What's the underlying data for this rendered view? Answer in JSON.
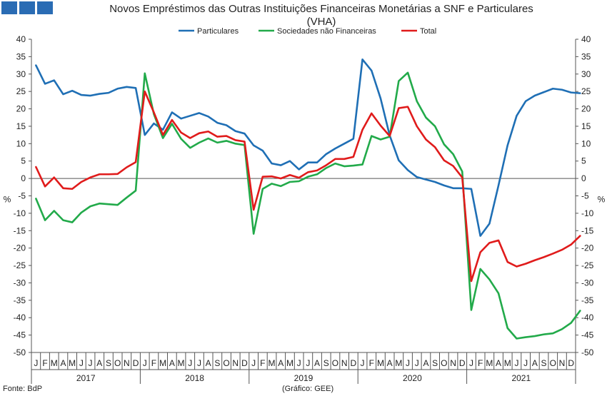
{
  "colors": {
    "particulares": "#1f6fb5",
    "snf": "#22aa4a",
    "total": "#e01b1b",
    "logo": "#2a6cb4"
  },
  "header": {
    "title_line1": "Novos Empréstimos das Outras Instituições Financeiras Monetárias a SNF e Particulares",
    "title_line2": "(VHA)"
  },
  "footer": {
    "source": "Fonte: BdP",
    "credit": "(Gráfico: GEE)"
  },
  "chart_data": {
    "type": "line",
    "title": "Novos Empréstimos das Outras Instituições Financeiras Monetárias a SNF e Particulares (VHA)",
    "ylabel": "%",
    "ylim": [
      -50,
      40
    ],
    "yticks": [
      40,
      35,
      30,
      25,
      20,
      15,
      10,
      5,
      0,
      -5,
      -10,
      -15,
      -20,
      -25,
      -30,
      -35,
      -40,
      -45,
      -50
    ],
    "legend_position": "top-center",
    "grid": false,
    "month_labels": [
      "J",
      "F",
      "M",
      "A",
      "M",
      "J",
      "J",
      "A",
      "S",
      "O",
      "N",
      "D"
    ],
    "years": [
      "2017",
      "2018",
      "2019",
      "2020",
      "2021"
    ],
    "series": [
      {
        "name": "Particulares",
        "color": "#1f6fb5",
        "values": [
          32.5,
          27.2,
          28.2,
          24.2,
          25.2,
          24.0,
          23.8,
          24.3,
          24.6,
          25.8,
          26.3,
          26.0,
          12.5,
          15.8,
          14.0,
          19.0,
          17.2,
          18.0,
          18.8,
          17.8,
          16.0,
          15.3,
          13.6,
          12.9,
          9.5,
          8.0,
          4.3,
          3.8,
          5.0,
          2.6,
          4.6,
          4.6,
          7.0,
          8.6,
          10.0,
          11.4,
          34.2,
          31.0,
          23.0,
          12.4,
          5.2,
          2.4,
          0.4,
          -0.3,
          -1.0,
          -2.0,
          -2.8,
          -2.8,
          -3.0,
          -16.5,
          -13.0,
          -2.0,
          9.5,
          18.0,
          22.2,
          23.8,
          24.8,
          25.8,
          25.5,
          24.7,
          24.5
        ]
      },
      {
        "name": "Sociedades não Financeiras",
        "color": "#22aa4a",
        "values": [
          -5.8,
          -12.0,
          -9.3,
          -12.0,
          -12.6,
          -9.8,
          -8.0,
          -7.2,
          -7.4,
          -7.6,
          -5.5,
          -3.5,
          30.2,
          18.5,
          11.6,
          15.7,
          11.4,
          8.8,
          10.3,
          11.5,
          10.3,
          10.8,
          10.0,
          9.6,
          -15.9,
          -3.0,
          -1.5,
          -2.2,
          -1.0,
          -0.8,
          0.5,
          1.2,
          3.0,
          4.3,
          3.5,
          3.7,
          4.0,
          12.2,
          11.2,
          12.0,
          28.0,
          30.4,
          22.2,
          17.5,
          15.0,
          9.8,
          7.0,
          2.0,
          -37.8,
          -26.0,
          -29.0,
          -33.0,
          -43.0,
          -46.0,
          -45.6,
          -45.3,
          -44.8,
          -44.5,
          -43.3,
          -41.5,
          -38.0
        ]
      },
      {
        "name": "Total",
        "color": "#e01b1b",
        "values": [
          3.3,
          -2.3,
          0.3,
          -2.8,
          -3.0,
          -1.0,
          0.3,
          1.2,
          1.2,
          1.3,
          3.2,
          4.7,
          25.0,
          19.0,
          12.5,
          16.8,
          13.2,
          11.6,
          13.0,
          13.5,
          12.0,
          12.2,
          11.0,
          10.6,
          -9.0,
          0.5,
          0.6,
          0.0,
          1.0,
          0.2,
          1.8,
          2.3,
          3.8,
          5.6,
          5.6,
          6.2,
          14.0,
          18.7,
          15.2,
          12.2,
          20.2,
          20.6,
          15.0,
          11.2,
          9.0,
          5.2,
          3.6,
          0.3,
          -29.5,
          -21.2,
          -18.5,
          -17.8,
          -24.0,
          -25.3,
          -24.5,
          -23.5,
          -22.6,
          -21.6,
          -20.5,
          -19.0,
          -16.5
        ]
      }
    ]
  }
}
